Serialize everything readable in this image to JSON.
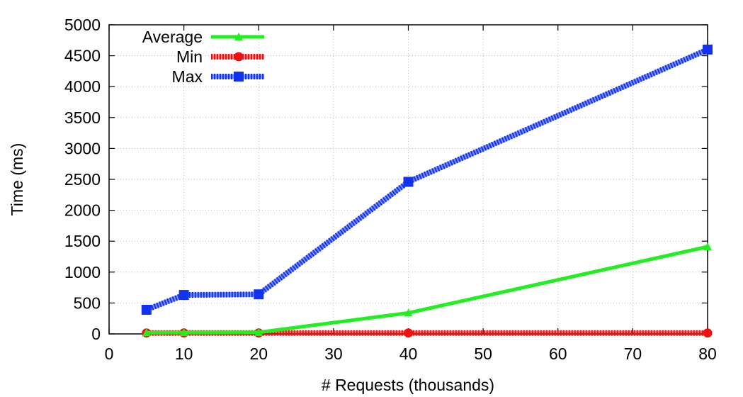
{
  "chart_data": {
    "type": "line",
    "xlabel": "# Requests (thousands)",
    "ylabel": "Time (ms)",
    "xlim": [
      0,
      80
    ],
    "ylim": [
      0,
      5000
    ],
    "x_ticks": [
      0,
      10,
      20,
      30,
      40,
      50,
      60,
      70,
      80
    ],
    "y_ticks": [
      0,
      500,
      1000,
      1500,
      2000,
      2500,
      3000,
      3500,
      4000,
      4500,
      5000
    ],
    "grid": true,
    "legend_position": "top-left",
    "x": [
      5,
      10,
      20,
      40,
      80
    ],
    "series": [
      {
        "name": "Average",
        "values": [
          20,
          22,
          25,
          340,
          1410
        ],
        "color": "#22ee22",
        "marker": "triangle",
        "style": "solid"
      },
      {
        "name": "Min",
        "values": [
          15,
          15,
          15,
          15,
          15
        ],
        "color": "#ee1111",
        "marker": "circle",
        "style": "hatched"
      },
      {
        "name": "Max",
        "values": [
          390,
          630,
          640,
          2460,
          4600
        ],
        "color": "#1133ee",
        "marker": "square",
        "style": "hatched"
      }
    ]
  }
}
